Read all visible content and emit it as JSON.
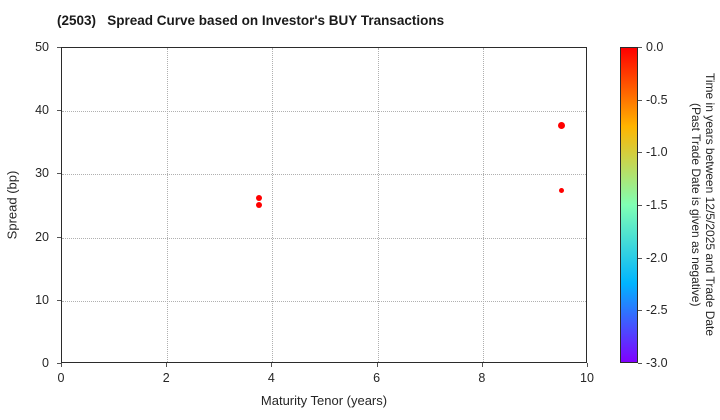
{
  "chart_data": {
    "type": "scatter",
    "title": "(2503)   Spread Curve based on Investor's BUY Transactions",
    "xlabel": "Maturity Tenor (years)",
    "ylabel": "Spread (bp)",
    "xlim": [
      0,
      10
    ],
    "ylim": [
      0,
      50
    ],
    "xticks": [
      0,
      2,
      4,
      6,
      8,
      10
    ],
    "yticks": [
      0,
      10,
      20,
      30,
      40,
      50
    ],
    "grid": true,
    "legend_position": "none",
    "points": [
      {
        "x": 3.75,
        "y": 26.2,
        "color_value": 0.0,
        "color": "#ff0000",
        "size": 6
      },
      {
        "x": 3.75,
        "y": 25.2,
        "color_value": 0.0,
        "color": "#ff0000",
        "size": 6
      },
      {
        "x": 9.5,
        "y": 37.7,
        "color_value": 0.0,
        "color": "#ff0000",
        "size": 7
      },
      {
        "x": 9.5,
        "y": 27.4,
        "color_value": 0.0,
        "color": "#ff0000",
        "size": 5
      }
    ],
    "colorbar": {
      "label_line1": "Time in years between 12/5/2025 and Trade Date",
      "label_line2": "(Past Trade Date is given as negative)",
      "tick_labels": [
        "0.0",
        "-0.5",
        "-1.0",
        "-1.5",
        "-2.0",
        "-2.5",
        "-3.0"
      ],
      "vmax": 0.0,
      "vmin": -3.0,
      "gradient": [
        {
          "stop": 0.0,
          "color": "#ff0000"
        },
        {
          "stop": 0.25,
          "color": "#ffb400"
        },
        {
          "stop": 0.5,
          "color": "#80ffb4"
        },
        {
          "stop": 0.75,
          "color": "#00b4ff"
        },
        {
          "stop": 1.0,
          "color": "#8000ff"
        }
      ]
    },
    "colors": {
      "point": "#ff0000",
      "grid": "#b0b0b0",
      "spine": "#2b2b2b",
      "text": "#262626"
    }
  }
}
